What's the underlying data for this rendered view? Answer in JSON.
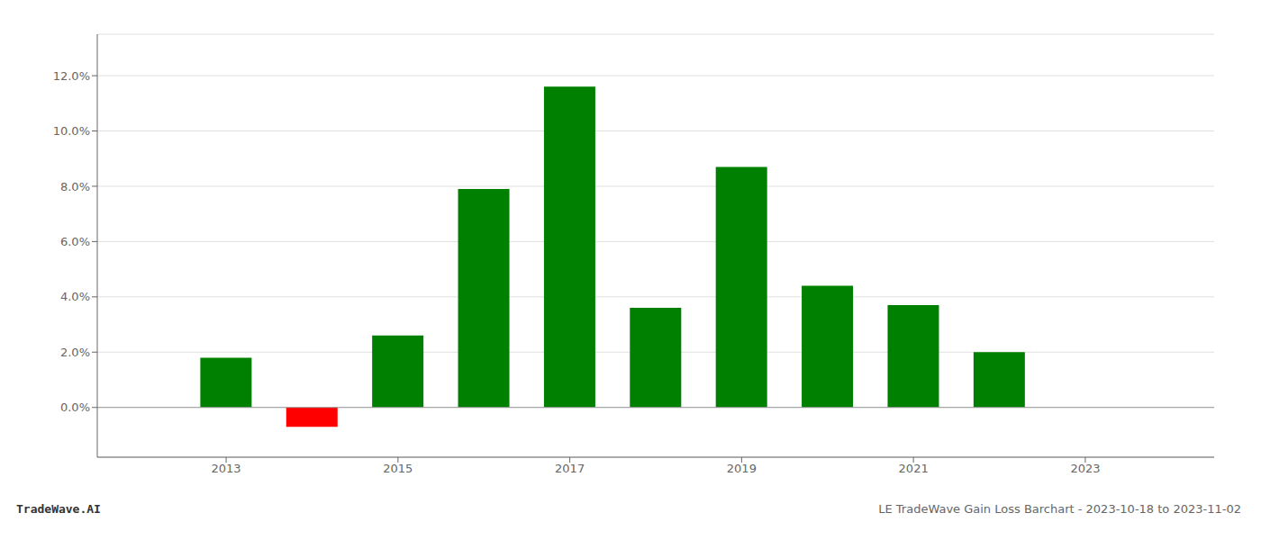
{
  "chart_data": {
    "type": "bar",
    "x": [
      2013,
      2014,
      2015,
      2016,
      2017,
      2018,
      2019,
      2020,
      2021,
      2022
    ],
    "values": [
      0.018,
      -0.007,
      0.026,
      0.079,
      0.116,
      0.036,
      0.087,
      0.044,
      0.037,
      0.02
    ],
    "colors": [
      "#008000",
      "#ff0000",
      "#008000",
      "#008000",
      "#008000",
      "#008000",
      "#008000",
      "#008000",
      "#008000",
      "#008000"
    ],
    "xlim": [
      2011.5,
      2024.5
    ],
    "xticks": [
      2013,
      2015,
      2017,
      2019,
      2021,
      2023
    ],
    "ylim": [
      -0.018,
      0.135
    ],
    "yticks": [
      {
        "value": 0.0,
        "label": "0.0%"
      },
      {
        "value": 0.02,
        "label": "2.0%"
      },
      {
        "value": 0.04,
        "label": "4.0%"
      },
      {
        "value": 0.06,
        "label": "6.0%"
      },
      {
        "value": 0.08,
        "label": "8.0%"
      },
      {
        "value": 0.1,
        "label": "10.0%"
      },
      {
        "value": 0.12,
        "label": "12.0%"
      }
    ],
    "grid": true,
    "annotations": [
      "TradeWave.AI",
      "LE TradeWave Gain Loss Barchart - 2023-10-18 to 2023-11-02"
    ]
  }
}
